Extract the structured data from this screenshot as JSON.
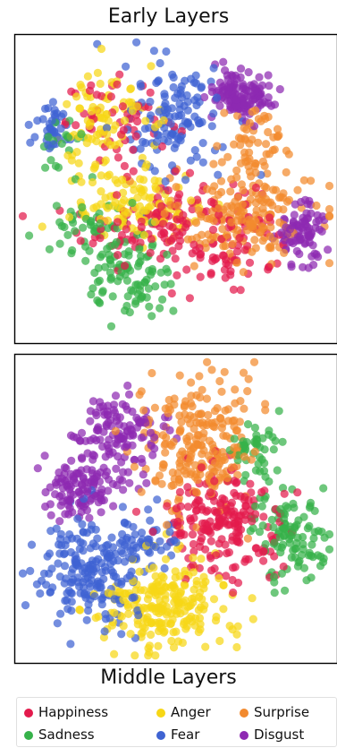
{
  "chart_data": [
    {
      "type": "scatter",
      "title": "Early Layers",
      "xlabel": "",
      "ylabel": "",
      "grid": false,
      "xlim": [
        0,
        100
      ],
      "ylim": [
        0,
        100
      ],
      "series": [
        {
          "name": "Happiness",
          "color": "#e31a4c",
          "clusters": [
            {
              "cx": 48,
              "cy": 38,
              "sx": 14,
              "sy": 8,
              "n": 150
            },
            {
              "cx": 33,
              "cy": 72,
              "sx": 9,
              "sy": 7,
              "n": 55
            },
            {
              "cx": 70,
              "cy": 30,
              "sx": 8,
              "sy": 6,
              "n": 35
            }
          ]
        },
        {
          "name": "Anger",
          "color": "#f7d716",
          "clusters": [
            {
              "cx": 30,
              "cy": 76,
              "sx": 7,
              "sy": 7,
              "n": 65
            },
            {
              "cx": 36,
              "cy": 45,
              "sx": 10,
              "sy": 6,
              "n": 110
            },
            {
              "cx": 22,
              "cy": 64,
              "sx": 5,
              "sy": 5,
              "n": 20
            }
          ]
        },
        {
          "name": "Surprise",
          "color": "#f28a2e",
          "clusters": [
            {
              "cx": 70,
              "cy": 42,
              "sx": 12,
              "sy": 8,
              "n": 190
            },
            {
              "cx": 76,
              "cy": 65,
              "sx": 6,
              "sy": 7,
              "n": 55
            }
          ]
        },
        {
          "name": "Sadness",
          "color": "#36b24a",
          "clusters": [
            {
              "cx": 36,
              "cy": 20,
              "sx": 7,
              "sy": 8,
              "n": 95
            },
            {
              "cx": 22,
              "cy": 36,
              "sx": 6,
              "sy": 5,
              "n": 45
            },
            {
              "cx": 12,
              "cy": 64,
              "sx": 5,
              "sy": 5,
              "n": 20
            }
          ]
        },
        {
          "name": "Fear",
          "color": "#3f63d2",
          "clusters": [
            {
              "cx": 50,
              "cy": 72,
              "sx": 8,
              "sy": 10,
              "n": 130
            },
            {
              "cx": 10,
              "cy": 71,
              "sx": 3,
              "sy": 4,
              "n": 38
            }
          ]
        },
        {
          "name": "Disgust",
          "color": "#8e2ab2",
          "clusters": [
            {
              "cx": 71,
              "cy": 82,
              "sx": 5,
              "sy": 4,
              "n": 130
            },
            {
              "cx": 90,
              "cy": 35,
              "sx": 4,
              "sy": 5,
              "n": 85
            }
          ]
        }
      ]
    },
    {
      "type": "scatter",
      "title": "Middle Layers",
      "xlabel": "",
      "ylabel": "",
      "grid": false,
      "xlim": [
        0,
        100
      ],
      "ylim": [
        0,
        100
      ],
      "series": [
        {
          "name": "Happiness",
          "color": "#e31a4c",
          "clusters": [
            {
              "cx": 65,
              "cy": 46,
              "sx": 9,
              "sy": 9,
              "n": 200
            }
          ]
        },
        {
          "name": "Anger",
          "color": "#f7d716",
          "clusters": [
            {
              "cx": 47,
              "cy": 18,
              "sx": 10,
              "sy": 8,
              "n": 230
            }
          ]
        },
        {
          "name": "Surprise",
          "color": "#f28a2e",
          "clusters": [
            {
              "cx": 57,
              "cy": 72,
              "sx": 9,
              "sy": 11,
              "n": 230
            }
          ]
        },
        {
          "name": "Sadness",
          "color": "#36b24a",
          "clusters": [
            {
              "cx": 86,
              "cy": 42,
              "sx": 6,
              "sy": 8,
              "n": 110
            },
            {
              "cx": 74,
              "cy": 70,
              "sx": 4,
              "sy": 5,
              "n": 45
            }
          ]
        },
        {
          "name": "Fear",
          "color": "#3f63d2",
          "clusters": [
            {
              "cx": 22,
              "cy": 30,
              "sx": 9,
              "sy": 9,
              "n": 200
            },
            {
              "cx": 40,
              "cy": 40,
              "sx": 6,
              "sy": 6,
              "n": 40
            }
          ]
        },
        {
          "name": "Disgust",
          "color": "#8e2ab2",
          "clusters": [
            {
              "cx": 31,
              "cy": 75,
              "sx": 7,
              "sy": 6,
              "n": 120
            },
            {
              "cx": 20,
              "cy": 57,
              "sx": 6,
              "sy": 5,
              "n": 120
            }
          ]
        }
      ]
    }
  ],
  "legend": {
    "placement": "bottom",
    "items": [
      {
        "label": "Happiness",
        "color": "#e31a4c"
      },
      {
        "label": "Anger",
        "color": "#f7d716"
      },
      {
        "label": "Surprise",
        "color": "#f28a2e"
      },
      {
        "label": "Sadness",
        "color": "#36b24a"
      },
      {
        "label": "Fear",
        "color": "#3f63d2"
      },
      {
        "label": "Disgust",
        "color": "#8e2ab2"
      }
    ]
  }
}
